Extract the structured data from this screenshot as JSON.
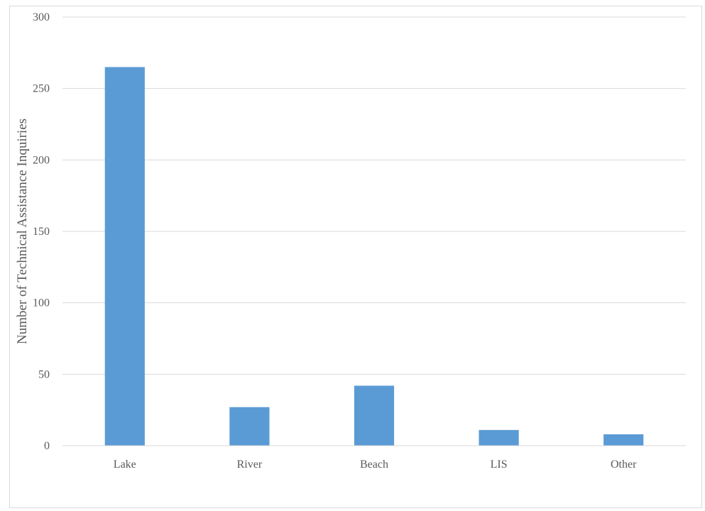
{
  "chart_data": {
    "type": "bar",
    "title": "",
    "xlabel": "",
    "ylabel": "Number of Technical Assistance Inquiries",
    "categories": [
      "Lake",
      "River",
      "Beach",
      "LIS",
      "Other"
    ],
    "values": [
      265,
      27,
      42,
      11,
      8
    ],
    "ylim": [
      0,
      300
    ],
    "yticks": [
      0,
      50,
      100,
      150,
      200,
      250,
      300
    ],
    "grid": true,
    "legend": "none",
    "bar_color": "#5b9bd5",
    "grid_color": "#d9d9d9",
    "text_color": "#595959"
  }
}
